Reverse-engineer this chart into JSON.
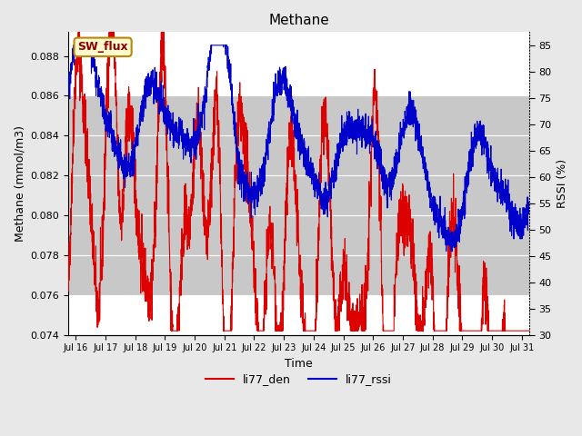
{
  "title": "Methane",
  "xlabel": "Time",
  "ylabel_left": "Methane (mmol/m3)",
  "ylabel_right": "RSSI (%)",
  "ylim_left": [
    0.074,
    0.0892
  ],
  "ylim_right": [
    30,
    87.5
  ],
  "yticks_left": [
    0.074,
    0.076,
    0.078,
    0.08,
    0.082,
    0.084,
    0.086,
    0.088
  ],
  "yticks_right": [
    30,
    35,
    40,
    45,
    50,
    55,
    60,
    65,
    70,
    75,
    80,
    85
  ],
  "xstart": 15.75,
  "xend": 31.25,
  "xtick_labels": [
    "Jul 16",
    "Jul 17",
    "Jul 18",
    "Jul 19",
    "Jul 20",
    "Jul 21",
    "Jul 22",
    "Jul 23",
    "Jul 24",
    "Jul 25",
    "Jul 26",
    "Jul 27",
    "Jul 28",
    "Jul 29",
    "Jul 30",
    "Jul 31"
  ],
  "xtick_positions": [
    16,
    17,
    18,
    19,
    20,
    21,
    22,
    23,
    24,
    25,
    26,
    27,
    28,
    29,
    30,
    31
  ],
  "shaded_band": [
    0.076,
    0.086
  ],
  "annotation_text": "SW_flux",
  "line_red_color": "#dd0000",
  "line_blue_color": "#0000cc",
  "line_width": 0.8,
  "legend_labels": [
    "li77_den",
    "li77_rssi"
  ],
  "bg_color": "#e8e8e8",
  "plot_bg_color": "#ffffff",
  "band_color": "#c8c8c8"
}
